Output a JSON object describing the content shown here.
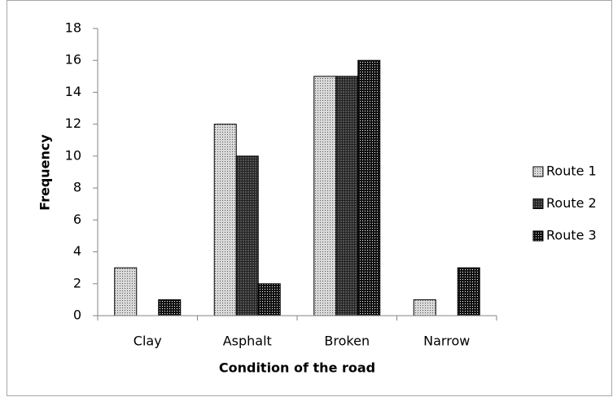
{
  "chart_data": {
    "type": "bar",
    "xlabel": "Condition of the road",
    "ylabel": "Frequency",
    "categories": [
      "Clay",
      "Asphalt",
      "Broken",
      "Narrow"
    ],
    "series": [
      {
        "name": "Route 1",
        "color": "#d9d9d9",
        "values": [
          3,
          12,
          15,
          1
        ]
      },
      {
        "name": "Route 2",
        "color": "#555555",
        "values": [
          0,
          10,
          15,
          0
        ]
      },
      {
        "name": "Route 3",
        "color": "#111111",
        "values": [
          1,
          2,
          16,
          3
        ]
      }
    ],
    "ylim": [
      0,
      18
    ],
    "yticks": [
      0,
      2,
      4,
      6,
      8,
      10,
      12,
      14,
      16,
      18
    ],
    "grid": false,
    "legend": "right"
  }
}
